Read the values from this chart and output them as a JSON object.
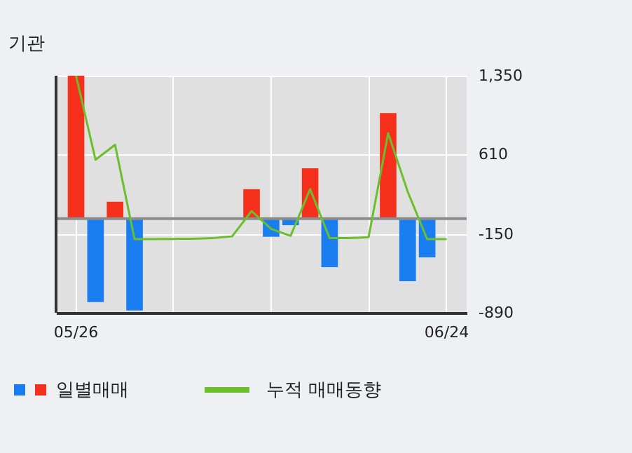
{
  "chart_data": {
    "type": "bar",
    "title": "기관",
    "categories": [
      "05/26",
      null,
      null,
      null,
      null,
      null,
      null,
      null,
      null,
      null,
      null,
      null,
      null,
      null,
      null,
      null,
      null,
      null,
      null,
      "06/24"
    ],
    "series": [
      {
        "name": "일별매매",
        "values": [
          1350,
          -789,
          159,
          -869,
          null,
          null,
          null,
          null,
          null,
          278,
          -172,
          -62,
          476,
          -459,
          null,
          null,
          997,
          -591,
          -366,
          null
        ],
        "colors": [
          "#f5311e",
          "#1a7ef0",
          "#f5311e",
          "#1a7ef0",
          null,
          null,
          null,
          null,
          null,
          "#f5311e",
          "#1a7ef0",
          "#1a7ef0",
          "#f5311e",
          "#1a7ef0",
          null,
          null,
          "#f5311e",
          "#1a7ef0",
          "#1a7ef0",
          null
        ]
      },
      {
        "name": "누적 매매동향",
        "type": "line",
        "color": "#6abf2a",
        "values": [
          1350,
          556,
          697,
          -194,
          -194,
          -192,
          -190,
          -185,
          -168,
          71,
          -97,
          -163,
          278,
          -185,
          -185,
          -176,
          807,
          256,
          -194,
          -194
        ]
      }
    ],
    "ylim": [
      -890,
      1350
    ],
    "yticks": [
      {
        "value": 1350,
        "label": "1,350"
      },
      610,
      -150,
      -890
    ],
    "ref_lines": [
      {
        "axis": "y",
        "value": 0,
        "color": "#8c8c8c"
      }
    ],
    "grid": true,
    "legend": "bottom"
  }
}
